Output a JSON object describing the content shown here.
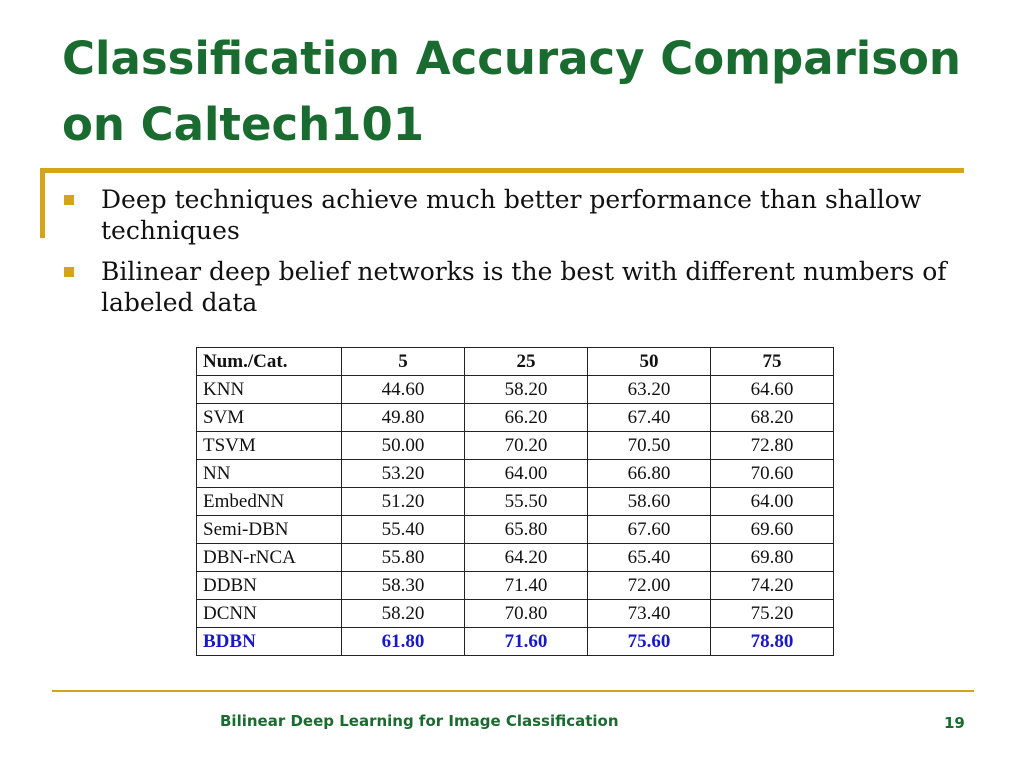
{
  "slide": {
    "title": "Classification Accuracy Comparison on Caltech101",
    "bullets": [
      "Deep techniques achieve much better performance than shallow techniques",
      "Bilinear deep belief networks is the best with different numbers of labeled data"
    ],
    "accent_color": "#d4a419",
    "title_color": "#1a6b2f",
    "highlight_color": "#1818c8"
  },
  "table": {
    "headers": [
      "Num./Cat.",
      "5",
      "25",
      "50",
      "75"
    ],
    "rows": [
      [
        "KNN",
        "44.60",
        "58.20",
        "63.20",
        "64.60"
      ],
      [
        "SVM",
        "49.80",
        "66.20",
        "67.40",
        "68.20"
      ],
      [
        "TSVM",
        "50.00",
        "70.20",
        "70.50",
        "72.80"
      ],
      [
        "NN",
        "53.20",
        "64.00",
        "66.80",
        "70.60"
      ],
      [
        "EmbedNN",
        "51.20",
        "55.50",
        "58.60",
        "64.00"
      ],
      [
        "Semi-DBN",
        "55.40",
        "65.80",
        "67.60",
        "69.60"
      ],
      [
        "DBN-rNCA",
        "55.80",
        "64.20",
        "65.40",
        "69.80"
      ],
      [
        "DDBN",
        "58.30",
        "71.40",
        "72.00",
        "74.20"
      ],
      [
        "DCNN",
        "58.20",
        "70.80",
        "73.40",
        "75.20"
      ],
      [
        "BDBN",
        "61.80",
        "71.60",
        "75.60",
        "78.80"
      ]
    ],
    "highlighted_row": "BDBN"
  },
  "footer": {
    "text": "Bilinear Deep Learning for Image Classification",
    "page_number": "19"
  }
}
